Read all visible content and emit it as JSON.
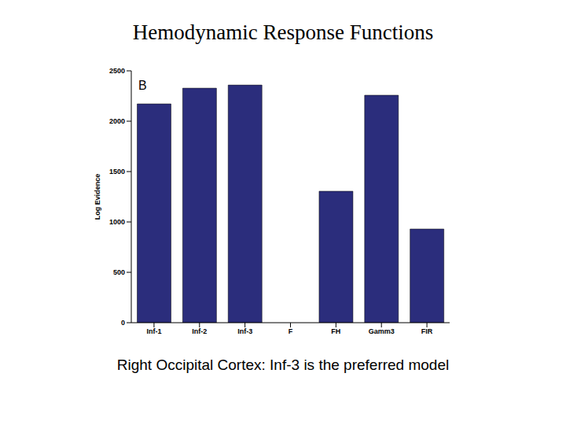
{
  "chart_data": {
    "type": "bar",
    "title": "Hemodynamic Response Functions",
    "caption": "Right Occipital Cortex: Inf-3 is the preferred model",
    "annotations": [
      "B"
    ],
    "y_label": "Log Evidence",
    "categories": [
      "Inf-1",
      "Inf-2",
      "Inf-3",
      "F",
      "FH",
      "Gamm3",
      "FIR"
    ],
    "values": [
      2172,
      2328,
      2359,
      null,
      1305,
      2258,
      930
    ],
    "color": "#2b2d7c",
    "ylim": [
      0,
      2500
    ],
    "yticks": [
      0,
      500,
      1000,
      1500,
      2000,
      2500
    ],
    "grid": false
  }
}
